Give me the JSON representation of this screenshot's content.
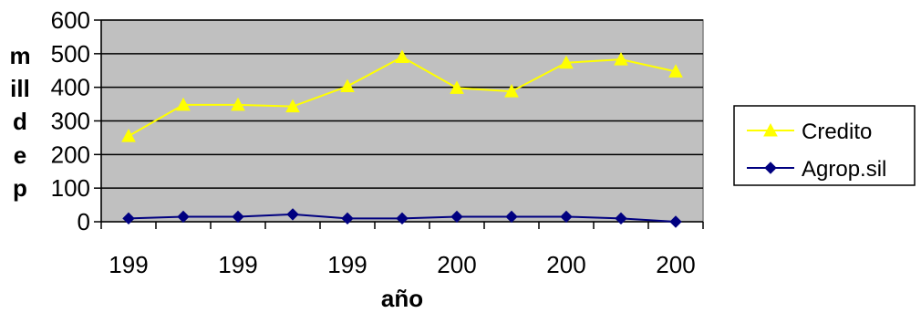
{
  "chart_data": {
    "type": "line",
    "title": "",
    "xlabel": "año",
    "ylabel_lines": [
      "m",
      "ill",
      "d",
      "e",
      "p"
    ],
    "x_tick_labels": [
      "199",
      "199",
      "199",
      "200",
      "200",
      "200"
    ],
    "yticks": [
      0,
      100,
      200,
      300,
      400,
      500,
      600
    ],
    "ylim": [
      0,
      600
    ],
    "grid": true,
    "legend_position": "right",
    "plot_background": "#c0c0c0",
    "series": [
      {
        "name": "Credito",
        "color": "#ffff00",
        "marker": "triangle",
        "values": [
          255,
          348,
          348,
          343,
          403,
          490,
          398,
          388,
          473,
          483,
          447
        ]
      },
      {
        "name": "Agrop.sil",
        "color": "#000080",
        "marker": "diamond",
        "values": [
          10,
          15,
          15,
          22,
          10,
          10,
          15,
          15,
          15,
          10,
          0
        ]
      }
    ]
  }
}
